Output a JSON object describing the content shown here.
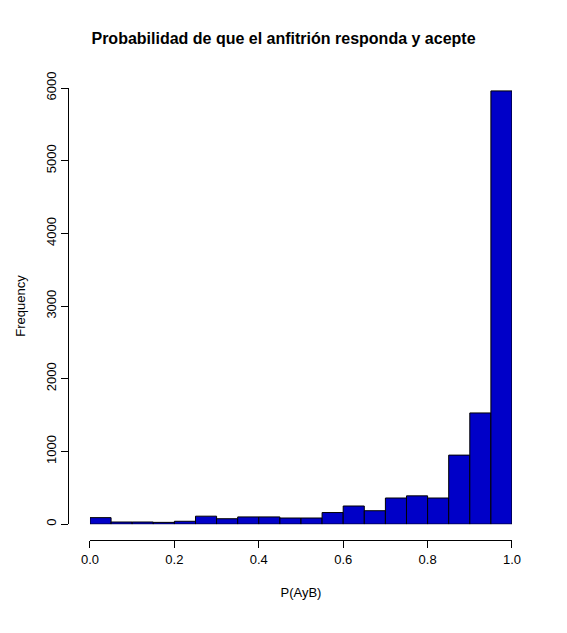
{
  "chart_data": {
    "type": "histogram",
    "title": "Probabilidad de que el anfitrión responda y acepte",
    "x_label": "P(AyB)",
    "y_label": "Frequency",
    "bins": [
      0,
      0.05,
      0.1,
      0.15,
      0.2,
      0.25,
      0.3,
      0.35,
      0.4,
      0.45,
      0.5,
      0.55,
      0.6,
      0.65,
      0.7,
      0.75,
      0.8,
      0.85,
      0.9,
      0.95,
      1
    ],
    "values": [
      90,
      30,
      30,
      25,
      40,
      110,
      75,
      100,
      100,
      85,
      85,
      160,
      250,
      185,
      360,
      390,
      360,
      950,
      1530,
      5960
    ],
    "color": "#0000c8",
    "xlim": [
      0,
      1
    ],
    "xticks": [
      {
        "value": 0,
        "label": "0.0"
      },
      0.2,
      0.4,
      0.6,
      0.8,
      {
        "value": 1,
        "label": "1.0"
      }
    ],
    "ylim": [
      0,
      6000
    ],
    "yticks": [
      0,
      1000,
      2000,
      3000,
      4000,
      5000,
      6000
    ],
    "grid": false
  }
}
